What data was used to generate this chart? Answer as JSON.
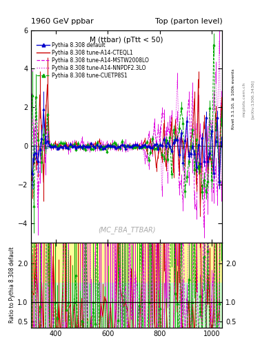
{
  "title_left": "1960 GeV ppbar",
  "title_right": "Top (parton level)",
  "plot_title": "M (ttbar) (pTtt < 50)",
  "watermark": "(MC_FBA_TTBAR)",
  "right_label1": "Rivet 3.1.10, ≥ 100k events",
  "right_label2": "mcplots.cern.ch",
  "arxiv_label": "[arXiv:1306.3436]",
  "ylabel_ratio": "Ratio to Pythia 8.308 default",
  "ylim_main": [
    -5,
    6
  ],
  "ylim_ratio": [
    0.35,
    2.55
  ],
  "yticks_main": [
    -4,
    -2,
    0,
    2,
    4,
    6
  ],
  "yticks_ratio": [
    0.5,
    1,
    2
  ],
  "xlim": [
    305,
    1040
  ],
  "xticks": [
    400,
    600,
    800,
    1000
  ],
  "legend_entries": [
    {
      "label": "Pythia 8.308 default",
      "color": "#0000cc",
      "ls": "-",
      "marker": "^",
      "lw": 1.2
    },
    {
      "label": "Pythia 8.308 tune-A14-CTEQL1",
      "color": "#cc0000",
      "ls": "-",
      "marker": null,
      "lw": 1.2
    },
    {
      "label": "Pythia 8.308 tune-A14-MSTW2008LO",
      "color": "#dd00dd",
      "ls": "--",
      "marker": null,
      "lw": 1.0
    },
    {
      "label": "Pythia 8.308 tune-A14-NNPDF2.3LO",
      "color": "#dd00dd",
      "ls": ":",
      "marker": null,
      "lw": 1.0
    },
    {
      "label": "Pythia 8.308 tune-CUETP8S1",
      "color": "#00aa00",
      "ls": "--",
      "marker": "^",
      "lw": 1.0
    }
  ],
  "seed": 42,
  "n_points": 100,
  "xmin": 305,
  "xmax": 1040
}
